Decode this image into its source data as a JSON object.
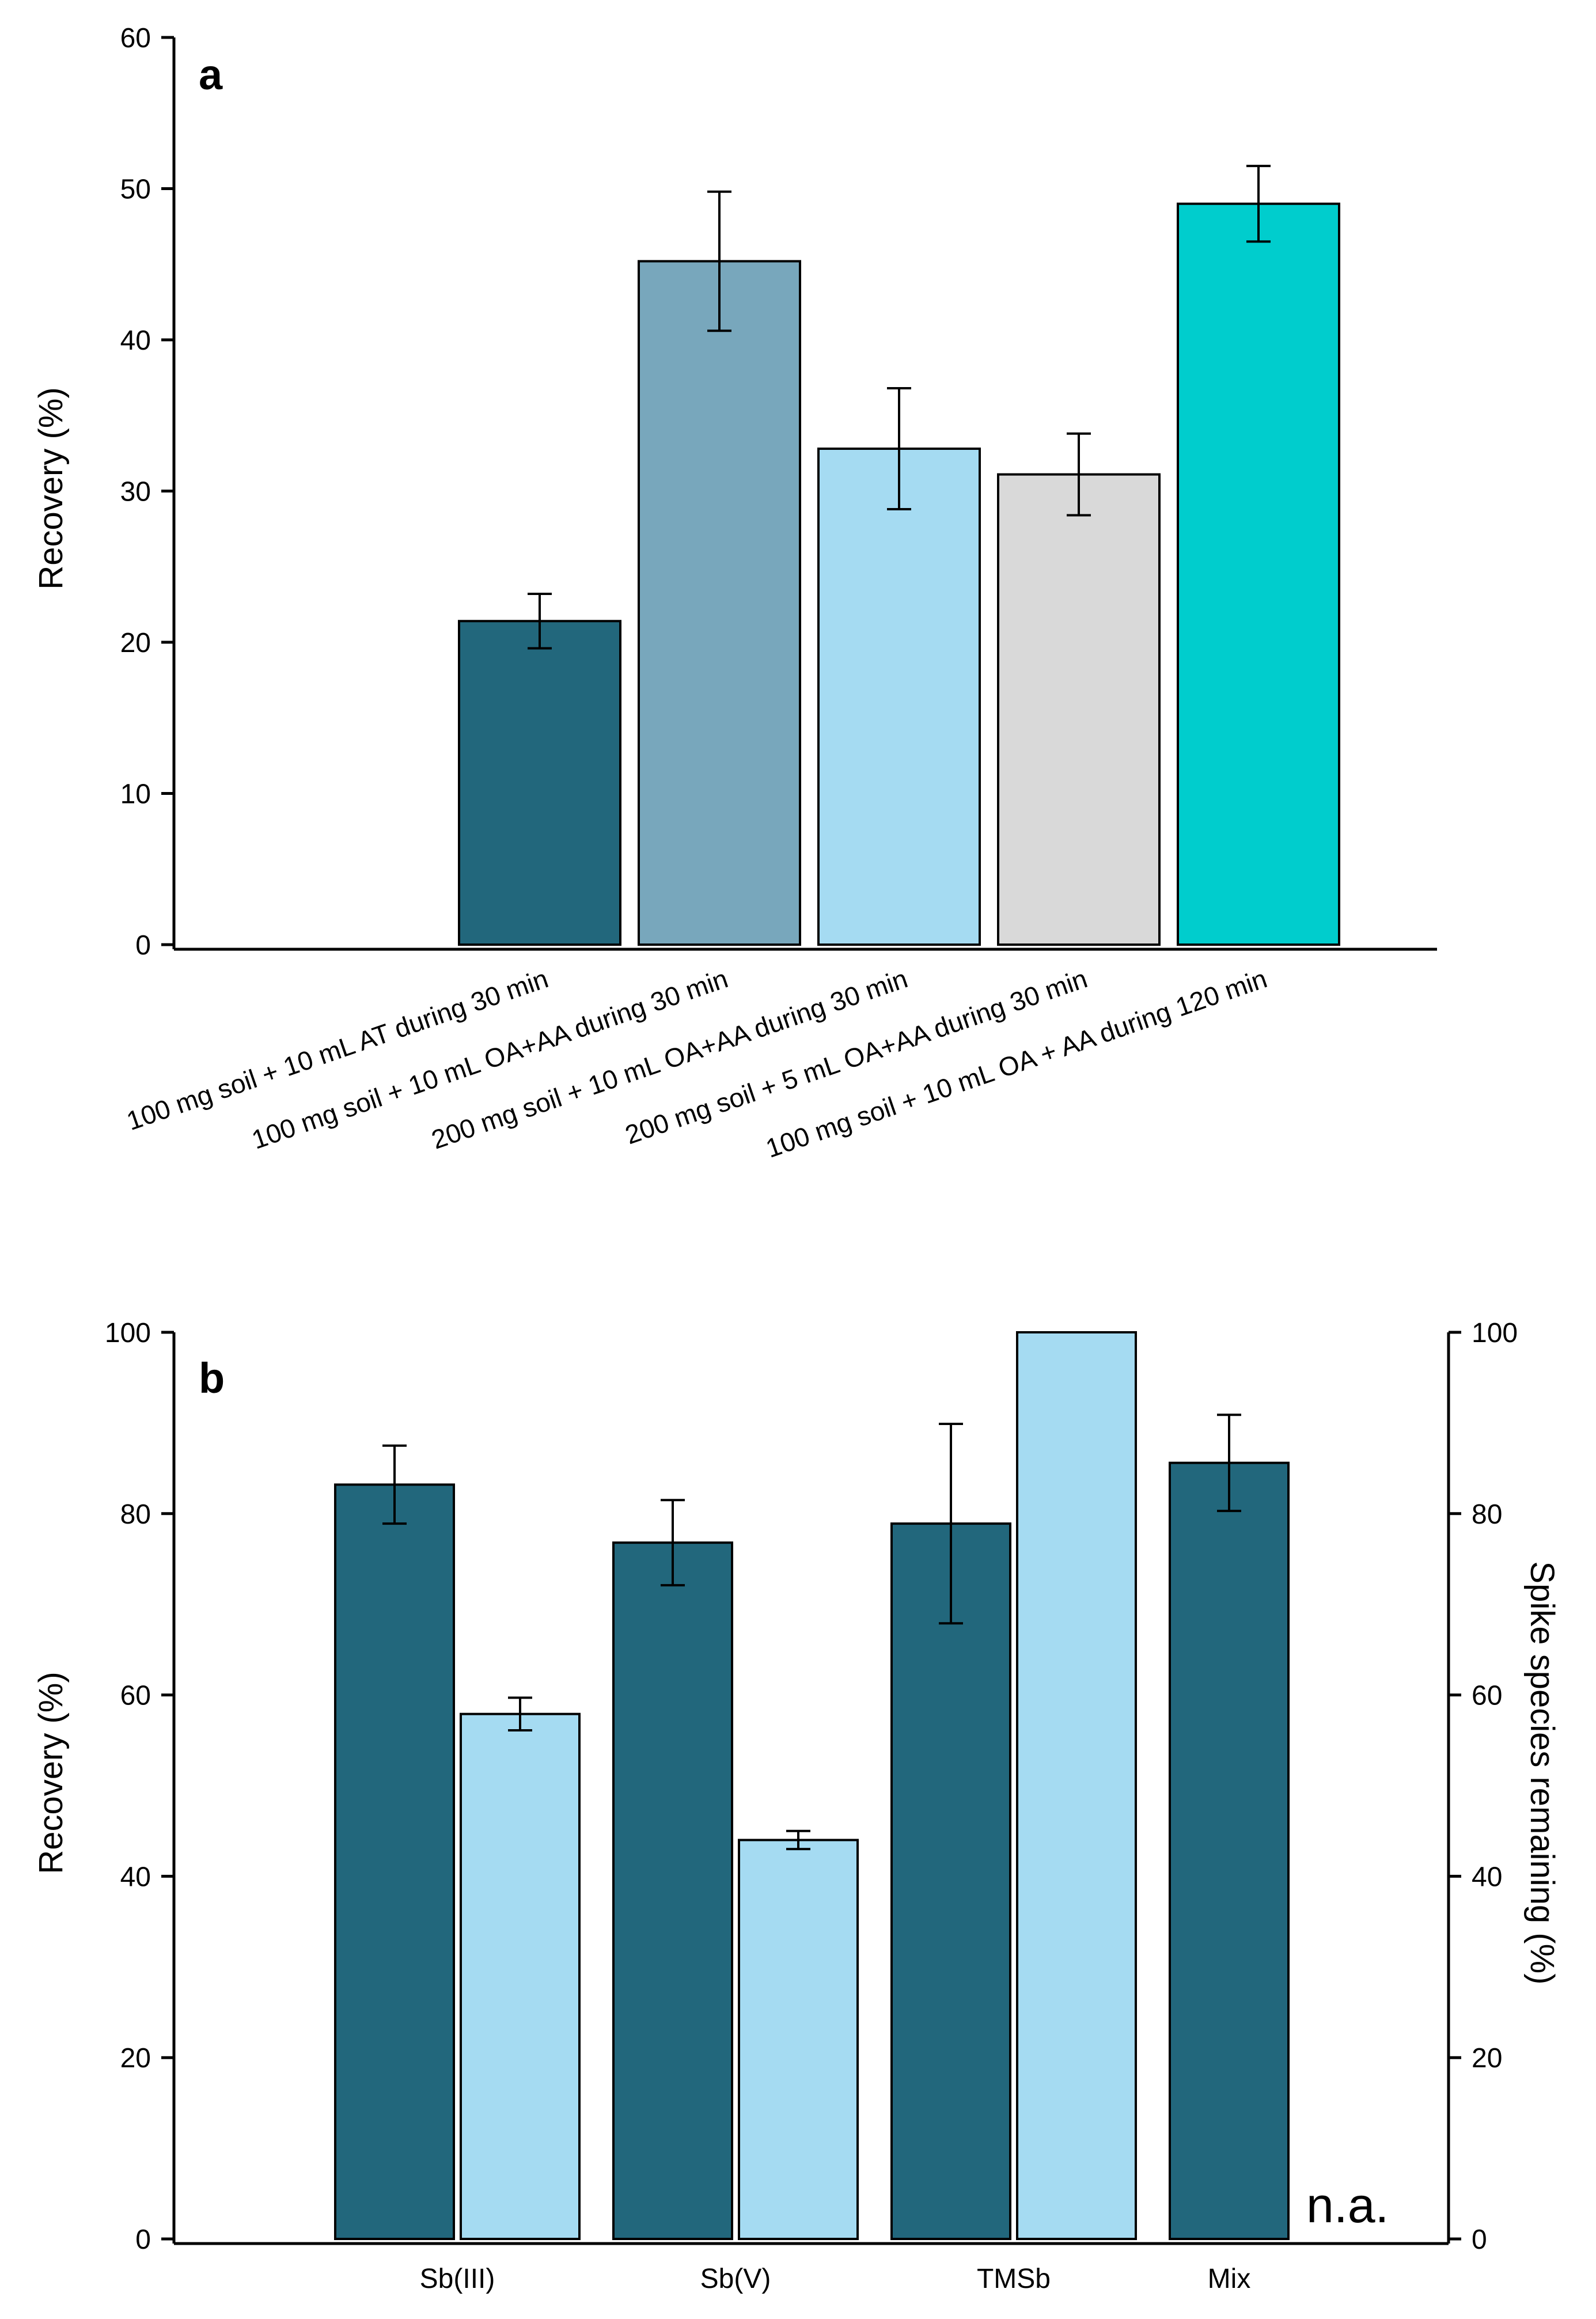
{
  "chart_data": [
    {
      "panel": "a",
      "type": "bar",
      "title": "",
      "xlabel": "",
      "ylabel": "Recovery (%)",
      "ylim": [
        0,
        60
      ],
      "yticks": [
        0,
        10,
        20,
        30,
        40,
        50,
        60
      ],
      "categories": [
        "100 mg soil + 10 mL AT during 30 min",
        "100 mg soil + 10 mL OA+AA during 30 min",
        "200 mg soil + 10 mL OA+AA during 30 min",
        "200 mg soil + 5 mL OA+AA during 30 min",
        "100 mg soil + 10 mL OA + AA during 120 min"
      ],
      "values": [
        21.4,
        45.2,
        32.8,
        31.1,
        49.0
      ],
      "errors": [
        1.8,
        4.6,
        4.0,
        2.7,
        2.5
      ],
      "colors": [
        "#22677c",
        "#78a7bc",
        "#a5dbf2",
        "#d9d9d9",
        "#00cdcd"
      ]
    },
    {
      "panel": "b",
      "type": "bar",
      "title": "",
      "xlabel": "",
      "ylabel": "Recovery (%)",
      "y2label": "Spike species remaining (%)",
      "ylim": [
        0,
        100
      ],
      "y2lim": [
        0,
        100
      ],
      "yticks": [
        0,
        20,
        40,
        60,
        80,
        100
      ],
      "categories": [
        "Sb(III)",
        "Sb(V)",
        "TMSb",
        "Mix"
      ],
      "series": [
        {
          "name": "Recovery",
          "axis": "left",
          "color": "#22677c",
          "values": [
            83.2,
            76.8,
            78.9,
            85.6
          ],
          "errors": [
            4.3,
            4.7,
            11.0,
            5.3
          ]
        },
        {
          "name": "Spike species remaining",
          "axis": "right",
          "color": "#a5dbf2",
          "values": [
            57.9,
            44.0,
            100,
            null
          ],
          "errors": [
            1.8,
            1.0,
            null,
            null
          ]
        }
      ],
      "annotation": "n.a."
    }
  ]
}
